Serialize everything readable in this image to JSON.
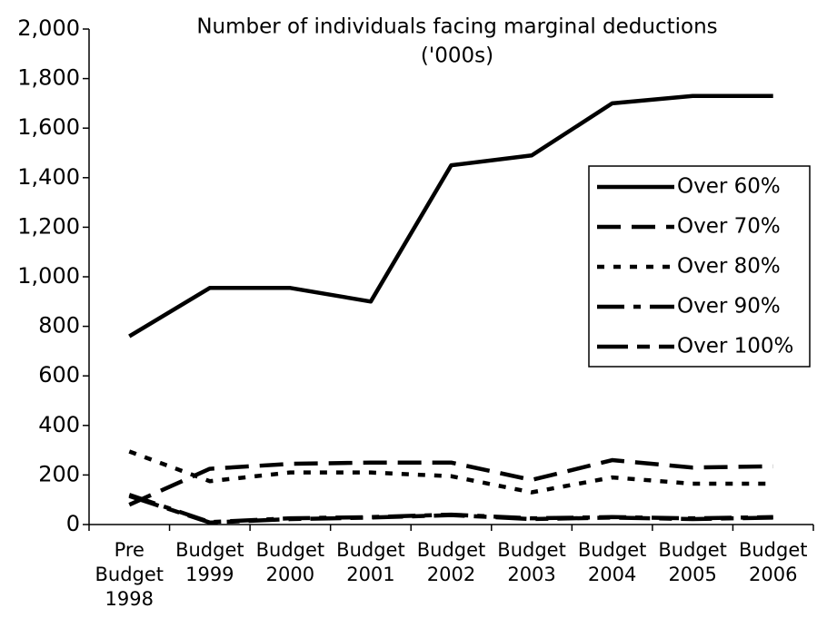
{
  "chart_data": {
    "type": "line",
    "title": [
      "Number of individuals facing marginal deductions",
      "('000s)"
    ],
    "categories": [
      [
        "Pre",
        "Budget",
        "1998"
      ],
      [
        "Budget",
        "1999"
      ],
      [
        "Budget",
        "2000"
      ],
      [
        "Budget",
        "2001"
      ],
      [
        "Budget",
        "2002"
      ],
      [
        "Budget",
        "2003"
      ],
      [
        "Budget",
        "2004"
      ],
      [
        "Budget",
        "2005"
      ],
      [
        "Budget",
        "2006"
      ]
    ],
    "series": [
      {
        "name": "Over 60%",
        "color": "#000000",
        "dash": "none",
        "values": [
          760,
          955,
          955,
          900,
          1450,
          1490,
          1700,
          1730,
          1730
        ]
      },
      {
        "name": "Over 70%",
        "color": "#000000",
        "dash": "26 12",
        "values": [
          80,
          225,
          245,
          250,
          250,
          180,
          260,
          230,
          235
        ]
      },
      {
        "name": "Over 80%",
        "color": "#000000",
        "dash": "8 10",
        "values": [
          295,
          175,
          210,
          210,
          195,
          130,
          190,
          165,
          165
        ]
      },
      {
        "name": "Over 90%",
        "color": "#000000",
        "dash": "30 10 8 10",
        "values": [
          120,
          10,
          25,
          30,
          40,
          25,
          30,
          25,
          30
        ]
      },
      {
        "name": "Over 100%",
        "color": "#000000",
        "dash": "34 10 14 10",
        "values": [
          115,
          8,
          22,
          28,
          38,
          22,
          28,
          22,
          28
        ]
      }
    ],
    "ylim": [
      0,
      2000
    ],
    "yticks": [
      0,
      200,
      400,
      600,
      800,
      {
        "value": 1000,
        "label": "1,000"
      },
      {
        "value": 1200,
        "label": "1,200"
      },
      {
        "value": 1400,
        "label": "1,400"
      },
      {
        "value": 1600,
        "label": "1,600"
      },
      {
        "value": 1800,
        "label": "1,800"
      },
      {
        "value": 2000,
        "label": "2,000"
      }
    ],
    "grid": false,
    "legend": "right"
  }
}
